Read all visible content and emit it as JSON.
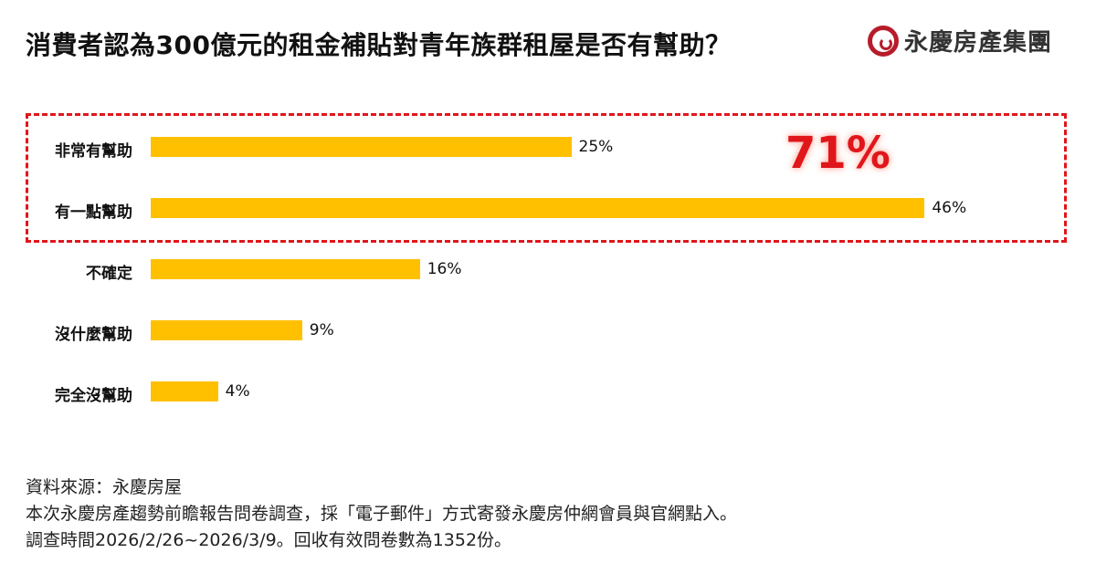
{
  "header": {
    "title": "消費者認為300億元的租金補貼對青年族群租屋是否有幫助？",
    "logo_text": "永慶房產集團"
  },
  "chart_data": {
    "type": "bar",
    "orientation": "horizontal",
    "title": "消費者認為300億元的租金補貼對青年族群租屋是否有幫助？",
    "categories": [
      "非常有幫助",
      "有一點幫助",
      "不確定",
      "沒什麼幫助",
      "完全沒幫助"
    ],
    "values": [
      25,
      46,
      16,
      9,
      4
    ],
    "value_labels": [
      "25%",
      "46%",
      "16%",
      "9%",
      "4%"
    ],
    "bar_color": "#FFC000",
    "annotation": {
      "text": "71%",
      "color": "#E0161B",
      "covers": [
        "非常有幫助",
        "有一點幫助"
      ]
    }
  },
  "footer": {
    "lines": [
      "資料來源：永慶房屋",
      "本次永慶房產趨勢前瞻報告問卷調查，採「電子郵件」方式寄發永慶房仲網會員與官網點入。",
      "調查時間2026/2/26~2026/3/9。回收有效問卷數為1352份。"
    ]
  }
}
